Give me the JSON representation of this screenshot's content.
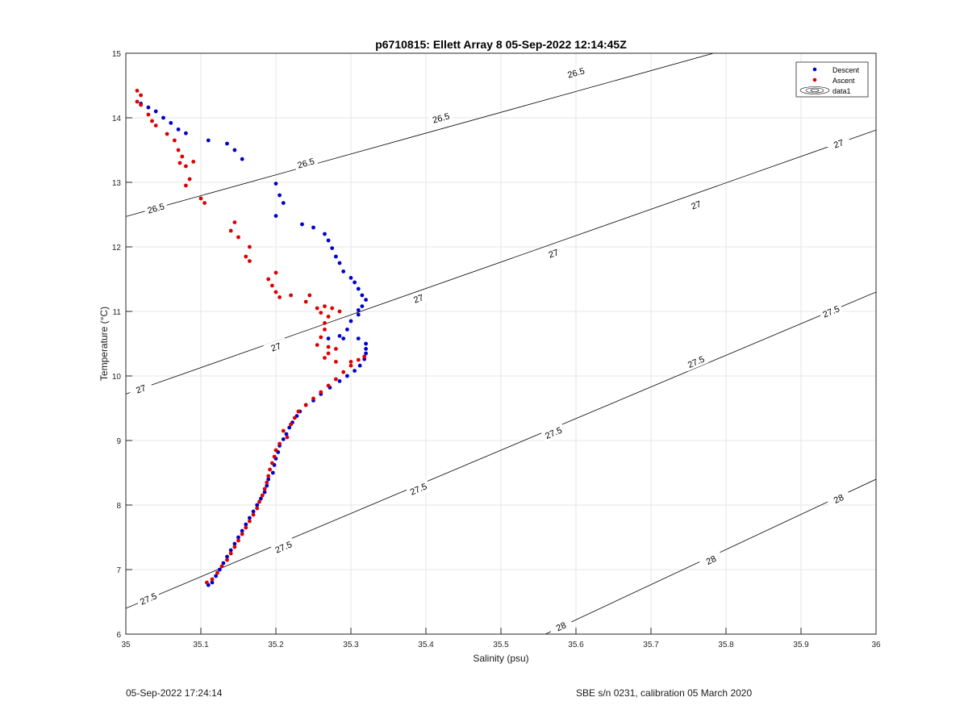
{
  "chart_data": {
    "type": "scatter",
    "title": "p6710815: Ellett Array 8 05-Sep-2022 12:14:45Z",
    "xlabel": "Salinity (psu)",
    "ylabel": "Temperature (°C)",
    "xlim": [
      35,
      36
    ],
    "ylim": [
      6,
      15
    ],
    "xticks": [
      35,
      35.1,
      35.2,
      35.3,
      35.4,
      35.5,
      35.6,
      35.7,
      35.8,
      35.9,
      36
    ],
    "xticklabels": [
      "35",
      "35.1",
      "35.2",
      "35.3",
      "35.4",
      "35.5",
      "35.6",
      "35.7",
      "35.8",
      "35.9",
      "36"
    ],
    "yticks": [
      6,
      7,
      8,
      9,
      10,
      11,
      12,
      13,
      14,
      15
    ],
    "yticklabels": [
      "6",
      "7",
      "8",
      "9",
      "10",
      "11",
      "12",
      "13",
      "14",
      "15"
    ],
    "grid": true,
    "legend_position": "top-right",
    "legend": [
      "Descent",
      "Ascent",
      "data1"
    ],
    "colors": {
      "descent": "#0000cc",
      "ascent": "#dd0000",
      "contour": "#000000",
      "grid": "#e6e6e6"
    },
    "series": [
      {
        "name": "Descent",
        "color": "#0000cc",
        "points": [
          [
            35.02,
            14.22
          ],
          [
            35.03,
            14.16
          ],
          [
            35.04,
            14.1
          ],
          [
            35.05,
            14.0
          ],
          [
            35.06,
            13.92
          ],
          [
            35.07,
            13.82
          ],
          [
            35.08,
            13.76
          ],
          [
            35.11,
            13.65
          ],
          [
            35.135,
            13.6
          ],
          [
            35.145,
            13.5
          ],
          [
            35.155,
            13.36
          ],
          [
            35.2,
            12.98
          ],
          [
            35.205,
            12.8
          ],
          [
            35.21,
            12.68
          ],
          [
            35.2,
            12.48
          ],
          [
            35.235,
            12.35
          ],
          [
            35.25,
            12.3
          ],
          [
            35.265,
            12.2
          ],
          [
            35.27,
            12.1
          ],
          [
            35.275,
            11.98
          ],
          [
            35.28,
            11.85
          ],
          [
            35.285,
            11.75
          ],
          [
            35.29,
            11.62
          ],
          [
            35.3,
            11.52
          ],
          [
            35.305,
            11.45
          ],
          [
            35.31,
            11.35
          ],
          [
            35.315,
            11.25
          ],
          [
            35.32,
            11.18
          ],
          [
            35.315,
            11.08
          ],
          [
            35.31,
            11.02
          ],
          [
            35.31,
            10.95
          ],
          [
            35.3,
            10.85
          ],
          [
            35.295,
            10.72
          ],
          [
            35.285,
            10.62
          ],
          [
            35.27,
            10.58
          ],
          [
            35.29,
            10.58
          ],
          [
            35.31,
            10.58
          ],
          [
            35.32,
            10.5
          ],
          [
            35.32,
            10.42
          ],
          [
            35.32,
            10.35
          ],
          [
            35.318,
            10.26
          ],
          [
            35.312,
            10.16
          ],
          [
            35.305,
            10.08
          ],
          [
            35.295,
            10.0
          ],
          [
            35.285,
            9.92
          ],
          [
            35.272,
            9.82
          ],
          [
            35.26,
            9.72
          ],
          [
            35.25,
            9.62
          ],
          [
            35.24,
            9.55
          ],
          [
            35.232,
            9.45
          ],
          [
            35.228,
            9.38
          ],
          [
            35.222,
            9.28
          ],
          [
            35.218,
            9.2
          ],
          [
            35.214,
            9.1
          ],
          [
            35.21,
            9.02
          ],
          [
            35.205,
            8.92
          ],
          [
            35.203,
            8.82
          ],
          [
            35.2,
            8.72
          ],
          [
            35.198,
            8.62
          ],
          [
            35.196,
            8.5
          ],
          [
            35.19,
            8.4
          ],
          [
            35.188,
            8.3
          ],
          [
            35.185,
            8.2
          ],
          [
            35.18,
            8.1
          ],
          [
            35.175,
            8.0
          ],
          [
            35.17,
            7.9
          ],
          [
            35.165,
            7.8
          ],
          [
            35.16,
            7.7
          ],
          [
            35.155,
            7.6
          ],
          [
            35.15,
            7.5
          ],
          [
            35.145,
            7.4
          ],
          [
            35.14,
            7.3
          ],
          [
            35.135,
            7.2
          ],
          [
            35.13,
            7.1
          ],
          [
            35.125,
            7.0
          ],
          [
            35.12,
            6.9
          ],
          [
            35.115,
            6.8
          ],
          [
            35.11,
            6.76
          ]
        ]
      },
      {
        "name": "Ascent",
        "color": "#dd0000",
        "points": [
          [
            35.015,
            14.42
          ],
          [
            35.02,
            14.35
          ],
          [
            35.015,
            14.25
          ],
          [
            35.02,
            14.2
          ],
          [
            35.03,
            14.05
          ],
          [
            35.035,
            13.95
          ],
          [
            35.04,
            13.88
          ],
          [
            35.055,
            13.75
          ],
          [
            35.065,
            13.65
          ],
          [
            35.07,
            13.5
          ],
          [
            35.075,
            13.4
          ],
          [
            35.072,
            13.3
          ],
          [
            35.08,
            13.25
          ],
          [
            35.09,
            13.32
          ],
          [
            35.085,
            13.05
          ],
          [
            35.08,
            12.95
          ],
          [
            35.1,
            12.75
          ],
          [
            35.105,
            12.68
          ],
          [
            35.145,
            12.38
          ],
          [
            35.14,
            12.25
          ],
          [
            35.15,
            12.15
          ],
          [
            35.165,
            12.0
          ],
          [
            35.16,
            11.85
          ],
          [
            35.165,
            11.78
          ],
          [
            35.2,
            11.6
          ],
          [
            35.19,
            11.5
          ],
          [
            35.195,
            11.4
          ],
          [
            35.2,
            11.3
          ],
          [
            35.205,
            11.22
          ],
          [
            35.22,
            11.25
          ],
          [
            35.245,
            11.25
          ],
          [
            35.24,
            11.15
          ],
          [
            35.255,
            11.05
          ],
          [
            35.26,
            10.98
          ],
          [
            35.265,
            11.08
          ],
          [
            35.275,
            11.05
          ],
          [
            35.285,
            11.0
          ],
          [
            35.27,
            10.92
          ],
          [
            35.265,
            10.82
          ],
          [
            35.265,
            10.72
          ],
          [
            35.26,
            10.6
          ],
          [
            35.255,
            10.48
          ],
          [
            35.27,
            10.45
          ],
          [
            35.28,
            10.42
          ],
          [
            35.27,
            10.35
          ],
          [
            35.265,
            10.28
          ],
          [
            35.28,
            10.22
          ],
          [
            35.3,
            10.22
          ],
          [
            35.318,
            10.3
          ],
          [
            35.31,
            10.25
          ],
          [
            35.3,
            10.16
          ],
          [
            35.29,
            10.06
          ],
          [
            35.28,
            9.95
          ],
          [
            35.27,
            9.85
          ],
          [
            35.26,
            9.75
          ],
          [
            35.25,
            9.65
          ],
          [
            35.24,
            9.55
          ],
          [
            35.23,
            9.45
          ],
          [
            35.225,
            9.35
          ],
          [
            35.22,
            9.25
          ],
          [
            35.21,
            9.15
          ],
          [
            35.215,
            9.05
          ],
          [
            35.205,
            8.95
          ],
          [
            35.2,
            8.85
          ],
          [
            35.198,
            8.75
          ],
          [
            35.195,
            8.65
          ],
          [
            35.192,
            8.55
          ],
          [
            35.19,
            8.45
          ],
          [
            35.188,
            8.35
          ],
          [
            35.185,
            8.25
          ],
          [
            35.182,
            8.15
          ],
          [
            35.178,
            8.05
          ],
          [
            35.175,
            7.95
          ],
          [
            35.17,
            7.85
          ],
          [
            35.165,
            7.75
          ],
          [
            35.16,
            7.65
          ],
          [
            35.155,
            7.55
          ],
          [
            35.15,
            7.45
          ],
          [
            35.145,
            7.35
          ],
          [
            35.14,
            7.25
          ],
          [
            35.135,
            7.15
          ],
          [
            35.128,
            7.05
          ],
          [
            35.122,
            6.95
          ],
          [
            35.115,
            6.85
          ],
          [
            35.108,
            6.8
          ]
        ]
      }
    ],
    "contours": [
      {
        "level": 26.5,
        "points": [
          [
            35,
            12.47
          ],
          [
            36,
            15.7
          ]
        ],
        "labels": [
          {
            "text": "26.5",
            "x": 35.04,
            "y": 12.6
          },
          {
            "text": "26.5",
            "x": 35.24,
            "y": 13.3
          },
          {
            "text": "26.5",
            "x": 35.42,
            "y": 14.0
          },
          {
            "text": "26.5",
            "x": 35.6,
            "y": 14.7
          }
        ]
      },
      {
        "level": 27,
        "points": [
          [
            35,
            9.72
          ],
          [
            36,
            13.81
          ]
        ],
        "labels": [
          {
            "text": "27",
            "x": 35.02,
            "y": 9.8
          },
          {
            "text": "27",
            "x": 35.2,
            "y": 10.45
          },
          {
            "text": "27",
            "x": 35.39,
            "y": 11.2
          },
          {
            "text": "27",
            "x": 35.57,
            "y": 11.9
          },
          {
            "text": "27",
            "x": 35.76,
            "y": 12.65
          },
          {
            "text": "27",
            "x": 35.95,
            "y": 13.6
          }
        ]
      },
      {
        "level": 27.5,
        "points": [
          [
            35,
            6.4
          ],
          [
            36,
            11.3
          ]
        ],
        "labels": [
          {
            "text": "27.5",
            "x": 35.03,
            "y": 6.55
          },
          {
            "text": "27.5",
            "x": 35.21,
            "y": 7.35
          },
          {
            "text": "27.5",
            "x": 35.39,
            "y": 8.25
          },
          {
            "text": "27.5",
            "x": 35.57,
            "y": 9.12
          },
          {
            "text": "27.5",
            "x": 35.76,
            "y": 10.22
          },
          {
            "text": "27.5",
            "x": 35.94,
            "y": 11.0
          }
        ]
      },
      {
        "level": 28,
        "points": [
          [
            35.55,
            5.95
          ],
          [
            36,
            8.4
          ]
        ],
        "labels": [
          {
            "text": "28",
            "x": 35.58,
            "y": 6.12
          },
          {
            "text": "28",
            "x": 35.78,
            "y": 7.15
          },
          {
            "text": "28",
            "x": 35.95,
            "y": 8.1
          }
        ]
      }
    ]
  },
  "footer": {
    "left": "05-Sep-2022 17:24:14",
    "right": "SBE s/n 0231, calibration 05 March 2020"
  }
}
